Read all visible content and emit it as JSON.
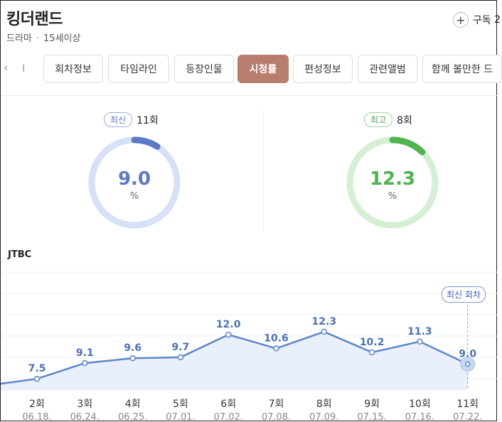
{
  "header": {
    "title": "킹더랜드",
    "genre": "드라마",
    "rating": "15세이상",
    "subscribe_label": "구독",
    "subscribe_count": "2"
  },
  "tabs": [
    {
      "label": "회차정보",
      "active": false
    },
    {
      "label": "타임라인",
      "active": false
    },
    {
      "label": "등장인물",
      "active": false
    },
    {
      "label": "시청률",
      "active": true
    },
    {
      "label": "편성정보",
      "active": false
    },
    {
      "label": "관련앨범",
      "active": false
    },
    {
      "label": "함께 볼만한 드",
      "active": false
    }
  ],
  "tab_cut_label": "I",
  "summary": {
    "latest": {
      "badge": "최신",
      "episode": "11회",
      "value": "9.0",
      "unit": "%",
      "fraction": 0.09,
      "color": "#5b79c7",
      "track": "#d6e0f6"
    },
    "best": {
      "badge": "최고",
      "episode": "8회",
      "value": "12.3",
      "unit": "%",
      "fraction": 0.123,
      "color": "#4fb34f",
      "track": "#d4efd3"
    }
  },
  "chart_data": {
    "type": "line",
    "network": "JTBC",
    "categories": [
      "2회",
      "3회",
      "4회",
      "5회",
      "6회",
      "7회",
      "8회",
      "9회",
      "10회",
      "11회"
    ],
    "dates": [
      "06.18.",
      "06.24.",
      "06.25.",
      "07.01.",
      "07.02.",
      "07.08.",
      "07.09.",
      "07.15.",
      "07.16.",
      "07.22."
    ],
    "values": [
      7.5,
      9.1,
      9.6,
      9.7,
      12.0,
      10.6,
      12.3,
      10.2,
      11.3,
      9.0
    ],
    "latest_label": "최신 회차",
    "line_color": "#5b86cc",
    "area_color": "#e9f0fb"
  }
}
